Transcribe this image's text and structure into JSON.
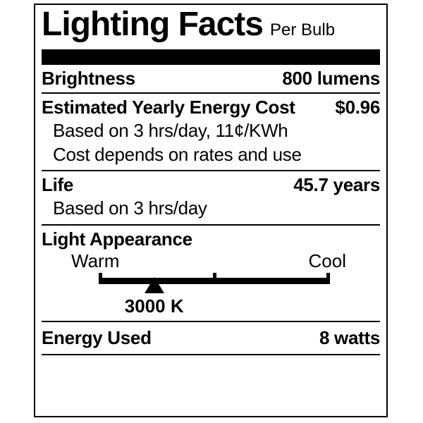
{
  "label": {
    "title": "Lighting Facts",
    "subtitle": "Per Bulb",
    "colors": {
      "ink": "#000000",
      "background": "#ffffff"
    },
    "rows": {
      "brightness": {
        "label": "Brightness",
        "value": "800 lumens"
      },
      "energy_cost": {
        "label": "Estimated Yearly Energy Cost",
        "value": "$0.96",
        "notes": [
          "Based on 3 hrs/day, 11¢/KWh",
          "Cost depends on rates and use"
        ]
      },
      "life": {
        "label": "Life",
        "value": "45.7 years",
        "notes": [
          "Based on 3 hrs/day"
        ]
      },
      "light_appearance": {
        "label": "Light Appearance",
        "warm": "Warm",
        "cool": "Cool",
        "temperature": "3000 K",
        "marker_position_pct": 24
      },
      "energy_used": {
        "label": "Energy Used",
        "value": "8 watts"
      }
    }
  }
}
